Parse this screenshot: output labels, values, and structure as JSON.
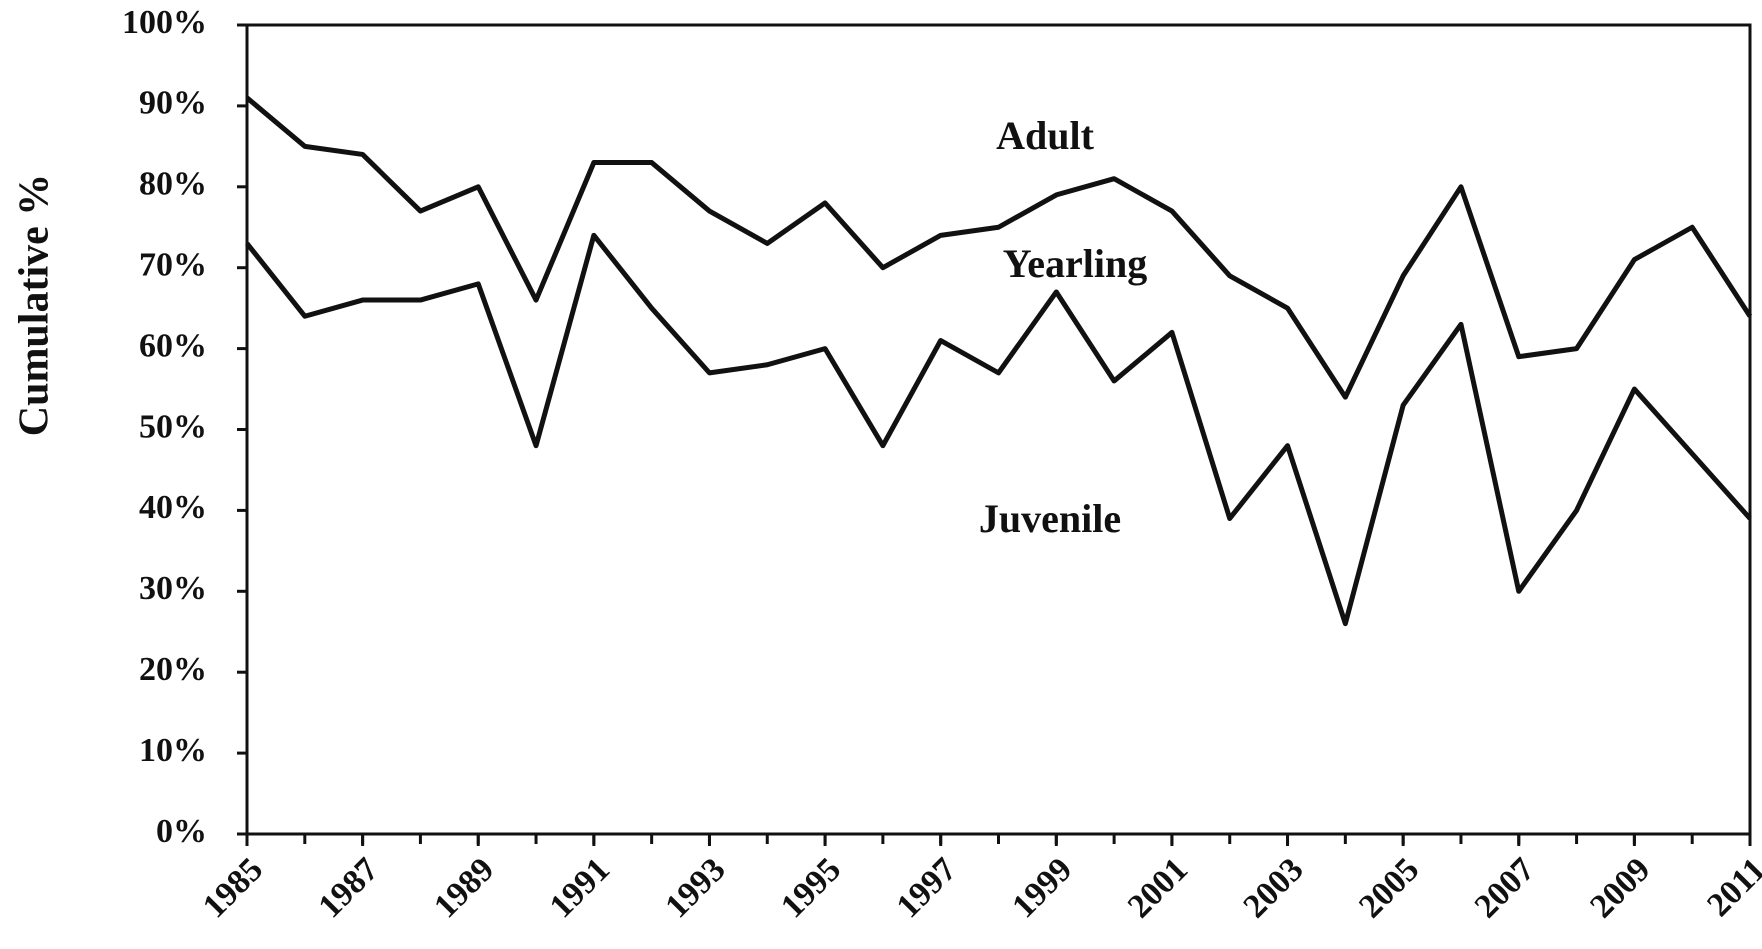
{
  "chart_data": {
    "type": "line",
    "y_label": "Cumulative %",
    "x": [
      1985,
      1986,
      1987,
      1988,
      1989,
      1990,
      1991,
      1992,
      1993,
      1994,
      1995,
      1996,
      1997,
      1998,
      1999,
      2000,
      2001,
      2002,
      2003,
      2004,
      2005,
      2006,
      2007,
      2008,
      2009,
      2010,
      2011
    ],
    "series": [
      {
        "color": "#111111",
        "values": [
          91,
          85,
          84,
          77,
          80,
          66,
          83,
          83,
          77,
          73,
          78,
          70,
          74,
          75,
          79,
          81,
          77,
          69,
          65,
          54,
          69,
          80,
          59,
          60,
          71,
          75,
          64
        ]
      },
      {
        "color": "#111111",
        "values": [
          73,
          64,
          66,
          66,
          68,
          48,
          74,
          65,
          57,
          58,
          60,
          48,
          61,
          57,
          67,
          56,
          62,
          39,
          48,
          26,
          53,
          63,
          30,
          40,
          55,
          47,
          39
        ]
      }
    ],
    "annotations": [
      "Adult",
      "Yearling",
      "Juvenile"
    ],
    "xlim": [
      1985,
      2011
    ],
    "xticks": [
      1985,
      1987,
      1989,
      1991,
      1993,
      1995,
      1997,
      1999,
      2001,
      2003,
      2005,
      2007,
      2009,
      2011
    ],
    "ylim": [
      0,
      100
    ],
    "yticks": [
      {
        "value": 0,
        "label": "0%"
      },
      {
        "value": 10,
        "label": "10%"
      },
      {
        "value": 20,
        "label": "20%"
      },
      {
        "value": 30,
        "label": "30%"
      },
      {
        "value": 40,
        "label": "40%"
      },
      {
        "value": 50,
        "label": "50%"
      },
      {
        "value": 60,
        "label": "60%"
      },
      {
        "value": 70,
        "label": "70%"
      },
      {
        "value": 80,
        "label": "80%"
      },
      {
        "value": 90,
        "label": "90%"
      },
      {
        "value": 100,
        "label": "100%"
      }
    ],
    "grid": false
  }
}
